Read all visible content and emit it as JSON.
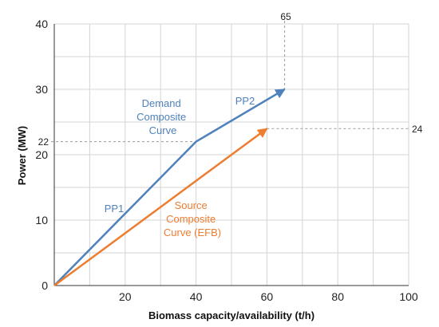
{
  "chart_data": {
    "type": "line",
    "xlabel": "Biomass capacity/availability  (t/h)",
    "ylabel": "Power (MW)",
    "xlim": [
      0,
      100
    ],
    "ylim": [
      0,
      40
    ],
    "x_ticks": [
      "20",
      "40",
      "60",
      "80",
      "100"
    ],
    "y_ticks": [
      "0",
      "10",
      "20",
      "30",
      "40"
    ],
    "grid": true,
    "colors": {
      "demand": "#4F81BD",
      "source": "#ED7D31"
    },
    "series": [
      {
        "name": "Demand Composite Curve",
        "x": [
          0,
          40,
          65
        ],
        "y": [
          0,
          22,
          30
        ]
      },
      {
        "name": "Source Composite Curve (EFB)",
        "x": [
          0,
          60
        ],
        "y": [
          0,
          24
        ]
      }
    ],
    "annotations": {
      "demand_label": [
        "Demand",
        "Composite",
        "Curve"
      ],
      "source_label": [
        "Source",
        "Composite",
        "Curve (EFB)"
      ],
      "pp1": "PP1",
      "pp2": "PP2",
      "guide_65": "65",
      "guide_22": "22",
      "guide_24": "24"
    }
  }
}
